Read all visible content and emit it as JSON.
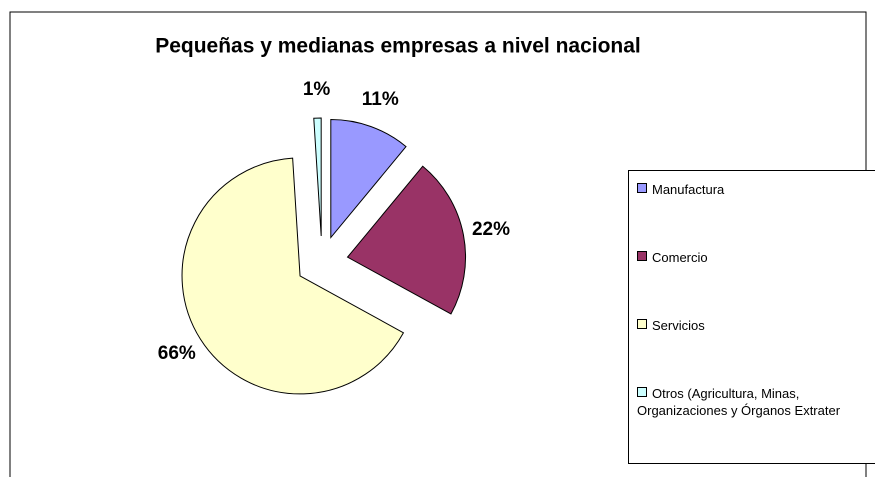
{
  "chart_data": {
    "type": "pie",
    "title": "Pequeñas y medianas empresas a nivel nacional",
    "categories": [
      "Manufactura",
      "Comercio",
      "Servicios",
      "Otros (Agricultura, Minas, Organizaciones y Órganos Extrater"
    ],
    "values": [
      11,
      22,
      66,
      1
    ],
    "value_labels": [
      "11%",
      "22%",
      "66%",
      "1%"
    ],
    "colors": [
      "#9999ff",
      "#993366",
      "#ffffcc",
      "#ccffff"
    ],
    "legend": "right"
  }
}
